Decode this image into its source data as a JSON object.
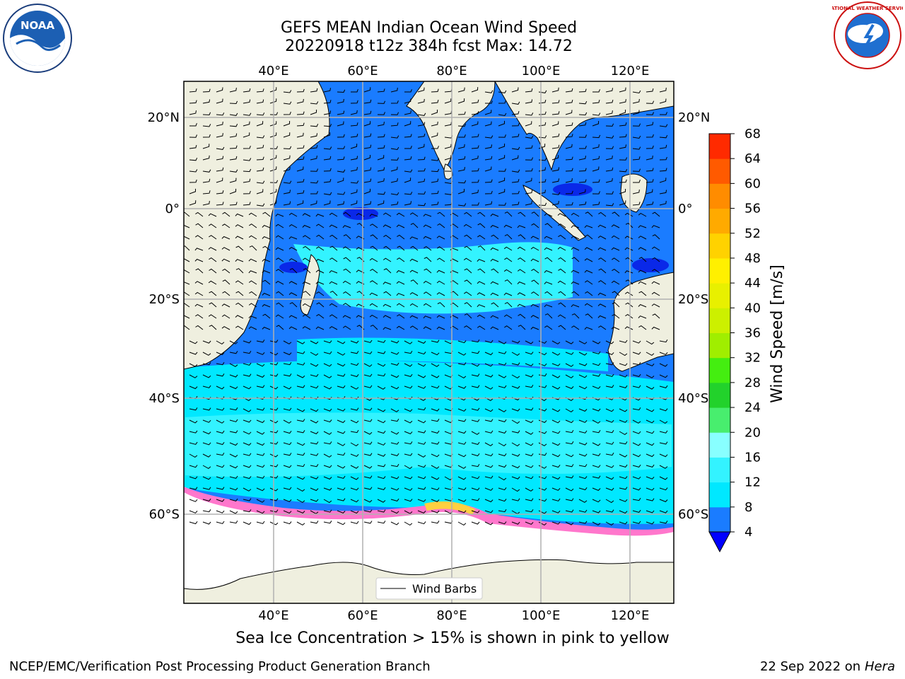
{
  "title": {
    "line1": "GEFS MEAN Indian Ocean Wind Speed",
    "line2": "20220918 t12z 384h fcst   Max: 14.72"
  },
  "map": {
    "lon_labels": [
      "40°E",
      "60°E",
      "80°E",
      "100°E",
      "120°E"
    ],
    "lat_labels": [
      "20°N",
      "0°",
      "20°S",
      "40°S",
      "60°S"
    ],
    "legend_label": "Wind Barbs",
    "colors": {
      "land": "#efefdf",
      "ice": "#ffffff",
      "sea_ice_pink": "#ff77cc",
      "sea_ice_yellow": "#ffd040"
    }
  },
  "colorbar": {
    "label": "Wind Speed [m/s]",
    "ticks": [
      "4",
      "8",
      "12",
      "16",
      "20",
      "24",
      "28",
      "32",
      "36",
      "40",
      "44",
      "48",
      "52",
      "56",
      "60",
      "64",
      "68"
    ],
    "colors": [
      "#1a7cff",
      "#00e8ff",
      "#33f3ff",
      "#88ffff",
      "#48ee6e",
      "#22d22b",
      "#44ee10",
      "#a0ee00",
      "#ccf000",
      "#e8f000",
      "#fff000",
      "#ffd200",
      "#ffaa00",
      "#ff8c00",
      "#ff5a00",
      "#ff2a00",
      "#ff0000"
    ],
    "under_color": "#0000ff"
  },
  "footer": {
    "note": "Sea Ice Concentration > 15% is shown in pink to yellow",
    "credit": "NCEP/EMC/Verification Post Processing Product Generation Branch",
    "date": "22 Sep 2022 on",
    "host": "Hera"
  },
  "logos": {
    "noaa_text": "NOAA",
    "nws_text": "NATIONAL WEATHER SERVICE"
  }
}
